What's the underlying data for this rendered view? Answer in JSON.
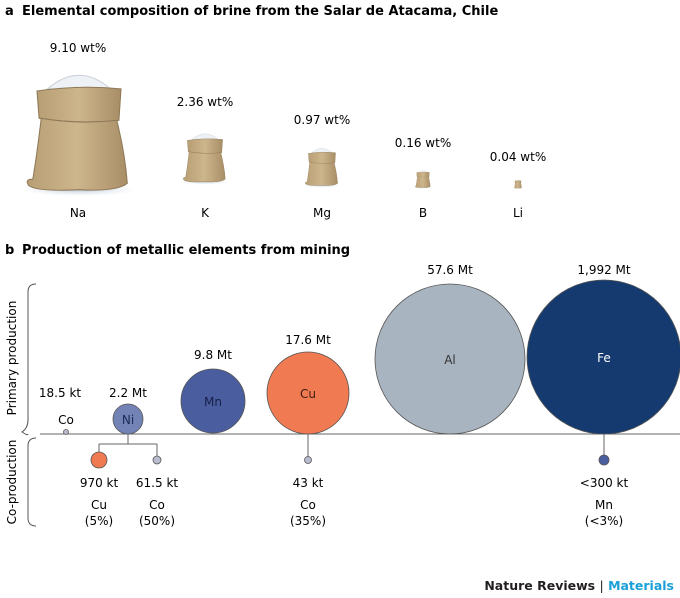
{
  "panel_a": {
    "letter": "a",
    "title": "Elemental composition of brine from the Salar de Atacama, Chile",
    "items": [
      {
        "element": "Na",
        "value": "9.10 wt%"
      },
      {
        "element": "K",
        "value": "2.36 wt%"
      },
      {
        "element": "Mg",
        "value": "0.97 wt%"
      },
      {
        "element": "B",
        "value": "0.16 wt%"
      },
      {
        "element": "Li",
        "value": "0.04 wt%"
      }
    ]
  },
  "panel_b": {
    "letter": "b",
    "title": "Production of metallic elements from mining",
    "primary_label": "Primary production",
    "co_label": "Co-production",
    "primary": [
      {
        "element": "Co",
        "value": "18.5 kt",
        "color": "#b9bccf"
      },
      {
        "element": "Ni",
        "value": "2.2 Mt",
        "color": "#7383b6"
      },
      {
        "element": "Mn",
        "value": "9.8 Mt",
        "color": "#4a5d9e"
      },
      {
        "element": "Cu",
        "value": "17.6 Mt",
        "color": "#f07a52"
      },
      {
        "element": "Al",
        "value": "57.6 Mt",
        "color": "#a8b4bf"
      },
      {
        "element": "Fe",
        "value": "1,992 Mt",
        "color": "#143a6f"
      }
    ],
    "coproduction": [
      {
        "from": "Ni",
        "value": "970 kt",
        "element": "Cu",
        "share": "(5%)",
        "color": "#f07a52"
      },
      {
        "from": "Ni",
        "value": "61.5 kt",
        "element": "Co",
        "share": "(50%)",
        "color": "#b9bccf"
      },
      {
        "from": "Cu",
        "value": "43 kt",
        "element": "Co",
        "share": "(35%)",
        "color": "#b9bccf"
      },
      {
        "from": "Fe",
        "value": "<300 kt",
        "element": "Mn",
        "share": "(<3%)",
        "color": "#4a5d9e"
      }
    ]
  },
  "footer": {
    "journal": "Nature Reviews",
    "separator": "|",
    "section": "Materials",
    "section_color": "#1aa0d8"
  }
}
